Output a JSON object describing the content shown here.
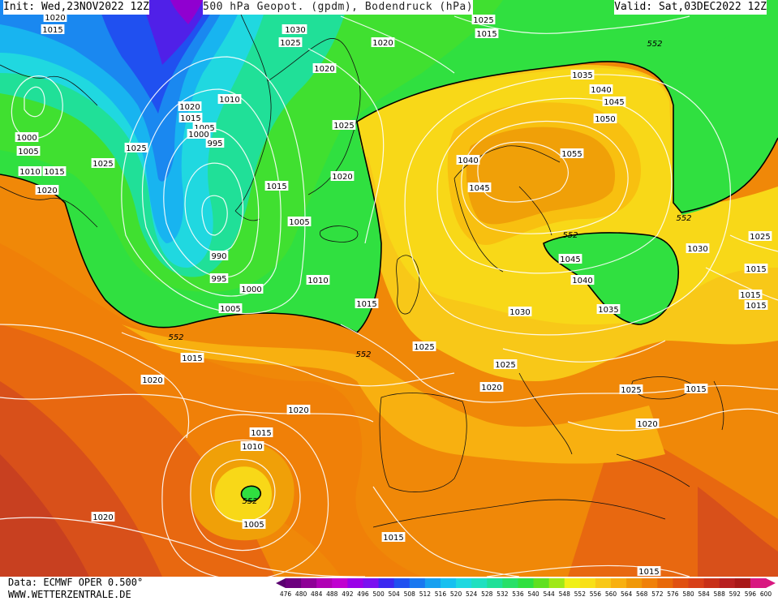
{
  "header": {
    "init": "Init: Wed,23NOV2022 12Z",
    "title": "500 hPa Geopot. (gpdm), Bodendruck (hPa)",
    "valid": "Valid: Sat,03DEC2022 12Z"
  },
  "footer": {
    "data_source": "Data: ECMWF OPER 0.500°",
    "website": "WWW.WETTERZENTRALE.DE"
  },
  "colorbar": {
    "values": [
      476,
      480,
      484,
      488,
      492,
      496,
      500,
      504,
      508,
      512,
      516,
      520,
      524,
      528,
      532,
      536,
      540,
      544,
      548,
      552,
      556,
      560,
      564,
      568,
      572,
      576,
      580,
      584,
      588,
      592,
      596,
      600
    ],
    "colors": [
      "#5a0070",
      "#6c007e",
      "#8e0096",
      "#b000b4",
      "#c000d0",
      "#9a00e8",
      "#7a10f0",
      "#3c28f0",
      "#2050f0",
      "#1a78f0",
      "#18a0f0",
      "#18c0f0",
      "#20d8e0",
      "#20e0c0",
      "#20e098",
      "#28e068",
      "#30e040",
      "#60e020",
      "#a0e818",
      "#f0f018",
      "#f8e018",
      "#f8c818",
      "#f8b010",
      "#f09808",
      "#f08008",
      "#e86808",
      "#e05010",
      "#d84018",
      "#c83018",
      "#b82020",
      "#a81818",
      "#d81880"
    ]
  },
  "pressure_labels": [
    "1020",
    "1015",
    "1020",
    "1025",
    "1030",
    "1015",
    "1020",
    "1025",
    "1020",
    "1035",
    "1040",
    "1045",
    "1050",
    "1025",
    "1010",
    "1020",
    "1015",
    "1005",
    "1000",
    "995",
    "1025",
    "1000",
    "1005",
    "1010",
    "1015",
    "1025",
    "1020",
    "1040",
    "1045",
    "1055",
    "1015",
    "1005",
    "1020",
    "990",
    "995",
    "1000",
    "1005",
    "1010",
    "1015",
    "1045",
    "1040",
    "1030",
    "1035",
    "1030",
    "1025",
    "1015",
    "1015",
    "1015",
    "1025",
    "1015",
    "1025",
    "1020",
    "1020",
    "1025",
    "1015",
    "1020",
    "1020",
    "1015",
    "1010",
    "1005",
    "1020",
    "1015",
    "1015"
  ],
  "geopot_labels": [
    "552",
    "552",
    "552",
    "552",
    "552",
    "552"
  ]
}
